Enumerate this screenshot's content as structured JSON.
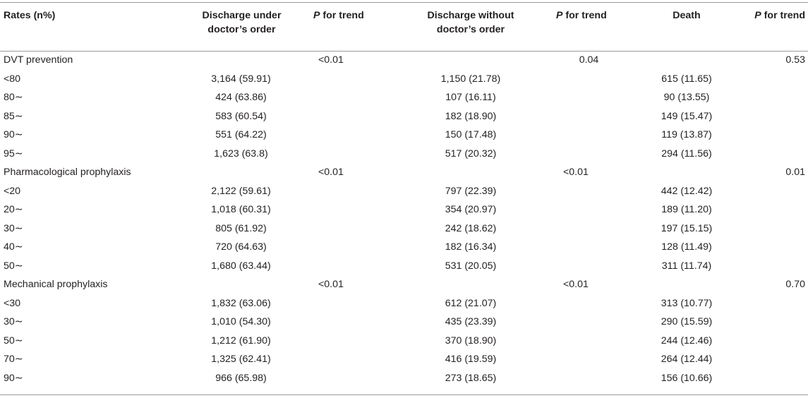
{
  "headers": {
    "c0": "Rates (n%)",
    "c1_l1": "Discharge under",
    "c1_l2": "doctor’s order",
    "c2_italic": "P",
    "c2_rest": " for trend",
    "c3_l1": "Discharge without",
    "c3_l2": "doctor’s order",
    "c4_italic": "P",
    "c4_rest": " for trend",
    "c5": "Death",
    "c6_italic": "P",
    "c6_rest": " for trend"
  },
  "rows": [
    {
      "label": "DVT prevention",
      "c1": "",
      "p1": "<0.01",
      "c3": "",
      "p2": "0.04",
      "c5": "",
      "p3": "0.53"
    },
    {
      "label": "<80",
      "c1": "3,164 (59.91)",
      "p1": "",
      "c3": "1,150 (21.78)",
      "p2": "",
      "c5": "615 (11.65)",
      "p3": ""
    },
    {
      "label": "80∼",
      "c1": "424 (63.86)",
      "p1": "",
      "c3": "107 (16.11)",
      "p2": "",
      "c5": "90 (13.55)",
      "p3": ""
    },
    {
      "label": "85∼",
      "c1": "583 (60.54)",
      "p1": "",
      "c3": "182 (18.90)",
      "p2": "",
      "c5": "149 (15.47)",
      "p3": ""
    },
    {
      "label": "90∼",
      "c1": "551 (64.22)",
      "p1": "",
      "c3": "150 (17.48)",
      "p2": "",
      "c5": "119 (13.87)",
      "p3": ""
    },
    {
      "label": "95∼",
      "c1": "1,623 (63.8)",
      "p1": "",
      "c3": "517 (20.32)",
      "p2": "",
      "c5": "294 (11.56)",
      "p3": ""
    },
    {
      "label": "Pharmacological prophylaxis",
      "c1": "",
      "p1": "<0.01",
      "c3": "",
      "p2": "<0.01",
      "c5": "",
      "p3": "0.01"
    },
    {
      "label": "<20",
      "c1": "2,122 (59.61)",
      "p1": "",
      "c3": "797 (22.39)",
      "p2": "",
      "c5": "442 (12.42)",
      "p3": ""
    },
    {
      "label": "20∼",
      "c1": "1,018 (60.31)",
      "p1": "",
      "c3": "354 (20.97)",
      "p2": "",
      "c5": "189 (11.20)",
      "p3": ""
    },
    {
      "label": "30∼",
      "c1": "805 (61.92)",
      "p1": "",
      "c3": "242 (18.62)",
      "p2": "",
      "c5": "197 (15.15)",
      "p3": ""
    },
    {
      "label": "40∼",
      "c1": "720 (64.63)",
      "p1": "",
      "c3": "182 (16.34)",
      "p2": "",
      "c5": "128 (11.49)",
      "p3": ""
    },
    {
      "label": "50∼",
      "c1": "1,680 (63.44)",
      "p1": "",
      "c3": "531 (20.05)",
      "p2": "",
      "c5": "311 (11.74)",
      "p3": ""
    },
    {
      "label": "Mechanical prophylaxis",
      "c1": "",
      "p1": "<0.01",
      "c3": "",
      "p2": "<0.01",
      "c5": "",
      "p3": "0.70"
    },
    {
      "label": "<30",
      "c1": "1,832 (63.06)",
      "p1": "",
      "c3": "612 (21.07)",
      "p2": "",
      "c5": "313 (10.77)",
      "p3": ""
    },
    {
      "label": "30∼",
      "c1": "1,010 (54.30)",
      "p1": "",
      "c3": "435 (23.39)",
      "p2": "",
      "c5": "290 (15.59)",
      "p3": ""
    },
    {
      "label": "50∼",
      "c1": "1,212 (61.90)",
      "p1": "",
      "c3": "370 (18.90)",
      "p2": "",
      "c5": "244 (12.46)",
      "p3": ""
    },
    {
      "label": "70∼",
      "c1": "1,325 (62.41)",
      "p1": "",
      "c3": "416 (19.59)",
      "p2": "",
      "c5": "264 (12.44)",
      "p3": ""
    },
    {
      "label": "90∼",
      "c1": "966 (65.98)",
      "p1": "",
      "c3": "273 (18.65)",
      "p2": "",
      "c5": "156 (10.66)",
      "p3": ""
    }
  ]
}
